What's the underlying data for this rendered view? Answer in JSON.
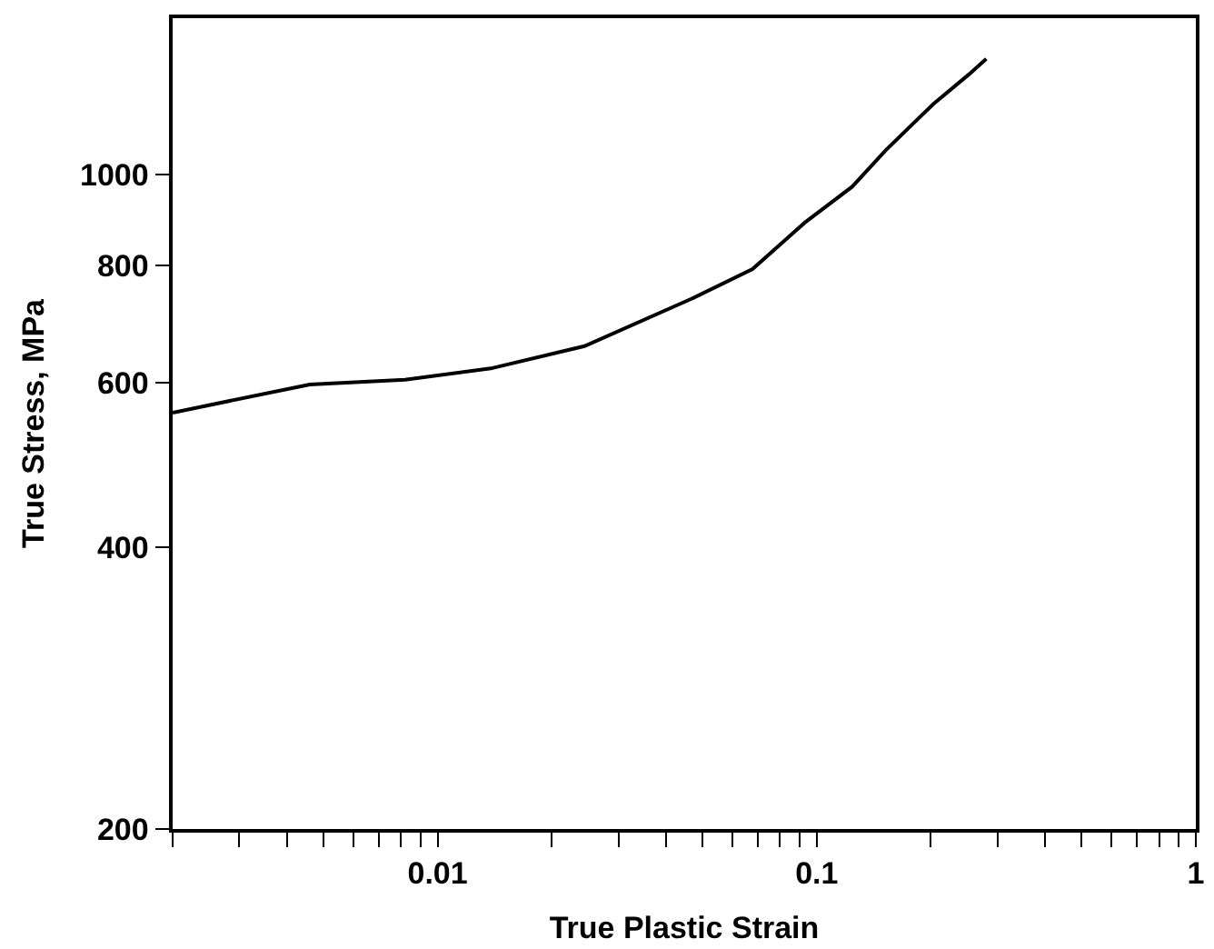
{
  "chart_data": {
    "type": "line",
    "xlabel": "True Plastic Strain",
    "ylabel": "True Stress, MPa",
    "log": "xy",
    "legend": false,
    "marker": "none",
    "line_style": "solid",
    "xlim": [
      0.002,
      1
    ],
    "ylim": [
      200,
      1470
    ],
    "xticks": [
      {
        "value": 0.002,
        "label": null
      },
      {
        "value": 0.003,
        "label": null
      },
      {
        "value": 0.004,
        "label": null
      },
      {
        "value": 0.005,
        "label": null
      },
      {
        "value": 0.006,
        "label": null
      },
      {
        "value": 0.007,
        "label": null
      },
      {
        "value": 0.008,
        "label": null
      },
      {
        "value": 0.009,
        "label": null
      },
      0.01,
      {
        "value": 0.02,
        "label": null
      },
      {
        "value": 0.03,
        "label": null
      },
      {
        "value": 0.04,
        "label": null
      },
      {
        "value": 0.05,
        "label": null
      },
      {
        "value": 0.06,
        "label": null
      },
      {
        "value": 0.07,
        "label": null
      },
      {
        "value": 0.08,
        "label": null
      },
      {
        "value": 0.09,
        "label": null
      },
      0.1,
      {
        "value": 0.2,
        "label": null
      },
      {
        "value": 0.3,
        "label": null
      },
      {
        "value": 0.4,
        "label": null
      },
      {
        "value": 0.5,
        "label": null
      },
      {
        "value": 0.6,
        "label": null
      },
      {
        "value": 0.7,
        "label": null
      },
      {
        "value": 0.8,
        "label": null
      },
      {
        "value": 0.9,
        "label": null
      },
      1
    ],
    "yticks": [
      200,
      400,
      600,
      800,
      1000
    ],
    "series": [
      {
        "color": "#000000",
        "x": [
          0.002,
          0.0046,
          0.0082,
          0.0138,
          0.0244,
          0.0467,
          0.0677,
          0.093,
          0.124,
          0.152,
          0.203,
          0.252,
          0.28
        ],
        "values": [
          557,
          597,
          604,
          621,
          656,
          737,
          793,
          889,
          971,
          1062,
          1190,
          1280,
          1330
        ]
      }
    ]
  }
}
